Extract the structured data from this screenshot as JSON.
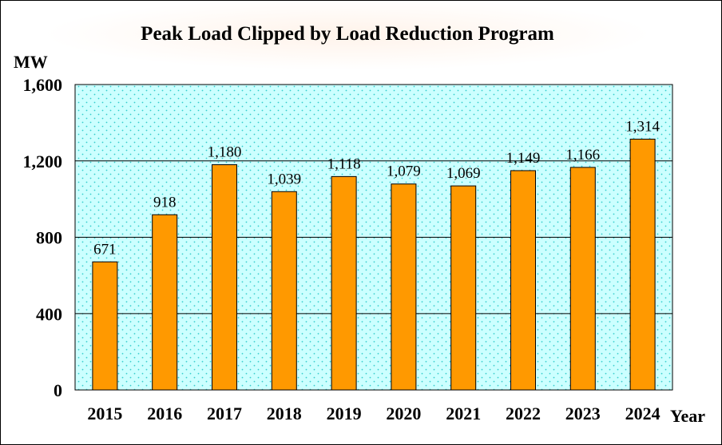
{
  "chart_data": {
    "type": "bar",
    "title": "Peak Load Clipped by Load Reduction Program",
    "ylabel": "MW",
    "xlabel": "Year",
    "categories": [
      "2015",
      "2016",
      "2017",
      "2018",
      "2019",
      "2020",
      "2021",
      "2022",
      "2023",
      "2024"
    ],
    "values": [
      671,
      918,
      1180,
      1039,
      1118,
      1079,
      1069,
      1149,
      1166,
      1314
    ],
    "value_labels": [
      "671",
      "918",
      "1,180",
      "1,039",
      "1,118",
      "1,079",
      "1,069",
      "1,149",
      "1,166",
      "1,314"
    ],
    "ylim": [
      0,
      1600
    ],
    "yticks": [
      0,
      400,
      800,
      1200,
      1600
    ],
    "ytick_labels": [
      "0",
      "400",
      "800",
      "1,200",
      "1,600"
    ],
    "grid": true,
    "legend": "none",
    "colors": {
      "bar": "#ff9900",
      "plot_background": "#ccffff",
      "dots": "#33cccc",
      "axis": "#000000"
    }
  }
}
